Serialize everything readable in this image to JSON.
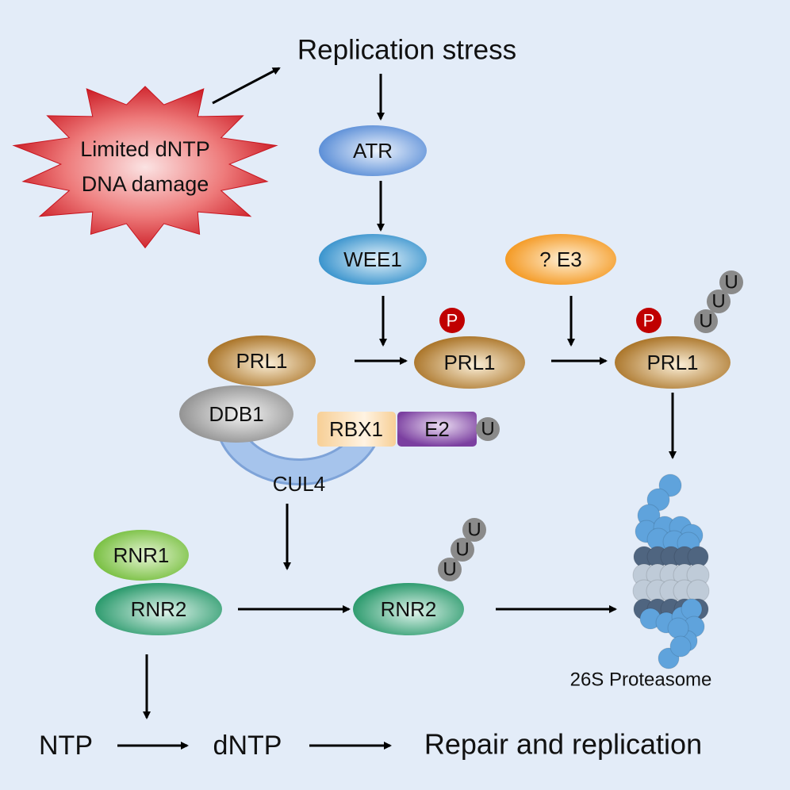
{
  "title": "Replication stress",
  "stress": {
    "line1": "Limited dNTP",
    "line2": "DNA damage"
  },
  "nodes": {
    "atr": "ATR",
    "wee1": "WEE1",
    "e3": "? E3",
    "prl1": "PRL1",
    "ddb1": "DDB1",
    "rbx1": "RBX1",
    "e2": "E2",
    "cul4": "CUL4",
    "rnr1": "RNR1",
    "rnr2": "RNR2",
    "phospho": "P",
    "ubiquitin": "U"
  },
  "proteasome_label": "26S Proteasome",
  "bottom": {
    "ntp": "NTP",
    "dntp": "dNTP",
    "outcome": "Repair and replication"
  },
  "colors": {
    "background": "#e3ecf8",
    "stress": "#d9262e",
    "atr": "#5b8fd6",
    "wee1": "#3a95cf",
    "e3": "#f59a1e",
    "prl1": "#b07a2a",
    "phospho": "#c00000",
    "ubiquitin": "#8a8a8a",
    "rnr1": "#7cc342",
    "rnr2": "#2e9e6e",
    "cul4": "#9dbde8",
    "e2": "#7b3fa0",
    "rbx1": "#f7cf96"
  }
}
